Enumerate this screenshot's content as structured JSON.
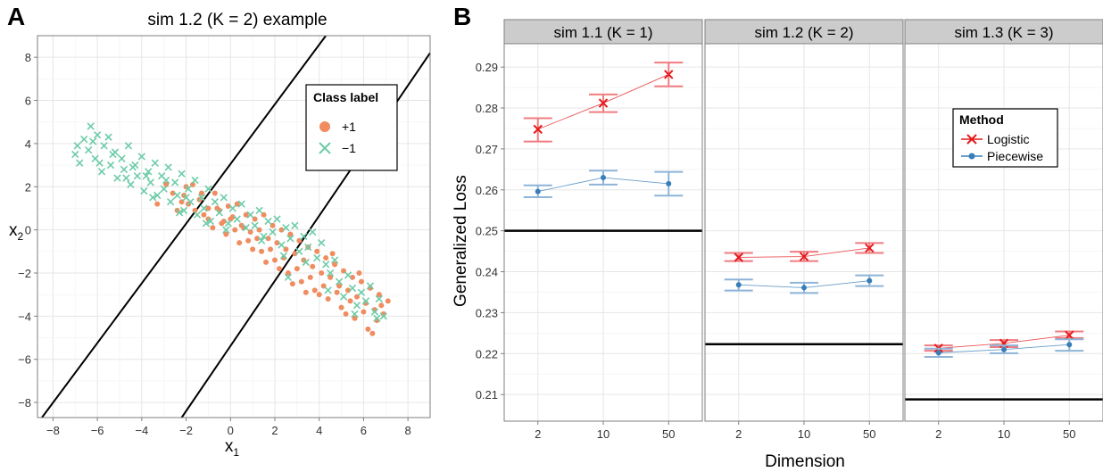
{
  "panel_a_letter": "A",
  "panel_b_letter": "B",
  "colors": {
    "plus_one": "#F08C60",
    "minus_one": "#6DCCA8",
    "logistic": "#E41A1C",
    "logistic_err": "#F07C80",
    "piecewise": "#377EB8",
    "piecewise_err": "#8EB4D8",
    "strip_bg": "#CCCCCC",
    "grid": "#EBEBEB"
  },
  "chart_data": [
    {
      "type": "scatter",
      "title": "sim 1.2 (K = 2) example",
      "xlabel": "x",
      "xlabel_sub": "1",
      "ylabel": "x",
      "ylabel_sub": "2",
      "xlim": [
        -8.7,
        9
      ],
      "ylim": [
        -8.7,
        9
      ],
      "xticks": [
        -8,
        -6,
        -4,
        -2,
        0,
        2,
        4,
        6,
        8
      ],
      "yticks": [
        -8,
        -6,
        -4,
        -2,
        0,
        2,
        4,
        6,
        8
      ],
      "xtick_labels": [
        "−8",
        "−6",
        "−4",
        "−2",
        "0",
        "2",
        "4",
        "6",
        "8"
      ],
      "ytick_labels": [
        "−8",
        "−6",
        "−4",
        "−2",
        "0",
        "2",
        "4",
        "6",
        "8"
      ],
      "grid": true,
      "legend": {
        "title": "Class label",
        "position": "top-right",
        "entries": [
          {
            "label": "+1",
            "marker": "circle",
            "color": "#F08C60"
          },
          {
            "label": "−1",
            "marker": "x",
            "color": "#6DCCA8"
          }
        ]
      },
      "boundary_lines": [
        {
          "x1": -8.5,
          "y1": -8.7,
          "x2": 4.3,
          "y2": 9.0
        },
        {
          "x1": -2.2,
          "y1": -8.7,
          "x2": 9.0,
          "y2": 8.2
        }
      ],
      "series": [
        {
          "name": "+1",
          "marker": "circle",
          "points": [
            [
              -3.3,
              1.2
            ],
            [
              -2.9,
              2.1
            ],
            [
              -2.6,
              1.7
            ],
            [
              -2.4,
              0.9
            ],
            [
              -2.1,
              1.6
            ],
            [
              -1.9,
              1.2
            ],
            [
              -1.7,
              2.1
            ],
            [
              -1.4,
              1.4
            ],
            [
              -1.2,
              0.7
            ],
            [
              -1.0,
              1.0
            ],
            [
              -0.7,
              1.7
            ],
            [
              -0.5,
              0.9
            ],
            [
              -0.3,
              0.4
            ],
            [
              -0.1,
              1.1
            ],
            [
              0.1,
              0.6
            ],
            [
              0.3,
              1.2
            ],
            [
              0.5,
              0.2
            ],
            [
              0.7,
              0.7
            ],
            [
              0.9,
              -0.1
            ],
            [
              1.1,
              0.5
            ],
            [
              1.3,
              0.0
            ],
            [
              1.5,
              0.7
            ],
            [
              1.7,
              -0.4
            ],
            [
              1.9,
              0.2
            ],
            [
              2.1,
              -0.6
            ],
            [
              2.3,
              0.0
            ],
            [
              2.5,
              -0.9
            ],
            [
              2.7,
              -0.2
            ],
            [
              2.9,
              -1.1
            ],
            [
              3.1,
              -0.5
            ],
            [
              3.3,
              -1.4
            ],
            [
              3.5,
              -0.8
            ],
            [
              3.7,
              -1.7
            ],
            [
              3.9,
              -1.0
            ],
            [
              4.1,
              -2.0
            ],
            [
              4.3,
              -1.3
            ],
            [
              4.5,
              -2.2
            ],
            [
              4.7,
              -1.6
            ],
            [
              4.9,
              -2.6
            ],
            [
              5.1,
              -1.9
            ],
            [
              5.3,
              -2.8
            ],
            [
              5.5,
              -2.2
            ],
            [
              5.7,
              -3.1
            ],
            [
              5.9,
              -2.4
            ],
            [
              6.1,
              -3.4
            ],
            [
              6.3,
              -2.7
            ],
            [
              6.5,
              -3.7
            ],
            [
              6.7,
              -3.0
            ],
            [
              6.9,
              -3.9
            ],
            [
              7.1,
              -3.3
            ],
            [
              6.2,
              -4.6
            ],
            [
              5.6,
              -4.1
            ],
            [
              5.0,
              -3.6
            ],
            [
              4.4,
              -3.2
            ],
            [
              3.8,
              -2.8
            ],
            [
              3.2,
              -2.4
            ],
            [
              2.6,
              -2.0
            ],
            [
              2.0,
              -1.4
            ],
            [
              1.4,
              -1.0
            ],
            [
              0.8,
              -0.5
            ],
            [
              0.2,
              0.0
            ],
            [
              -0.4,
              0.3
            ],
            [
              -1.0,
              0.5
            ],
            [
              -1.6,
              0.9
            ],
            [
              -2.2,
              1.3
            ],
            [
              3.0,
              -1.8
            ],
            [
              3.6,
              -2.2
            ],
            [
              4.2,
              -2.6
            ],
            [
              4.8,
              -2.9
            ],
            [
              5.4,
              -3.3
            ],
            [
              6.0,
              -3.8
            ],
            [
              6.6,
              -4.2
            ],
            [
              2.4,
              -1.3
            ],
            [
              1.8,
              -0.9
            ],
            [
              1.2,
              -0.4
            ],
            [
              0.6,
              0.1
            ],
            [
              0.0,
              0.5
            ],
            [
              -0.6,
              1.0
            ],
            [
              -1.3,
              1.7
            ],
            [
              -2.0,
              2.0
            ],
            [
              4.0,
              -3.0
            ],
            [
              5.2,
              -3.9
            ],
            [
              6.4,
              -4.8
            ],
            [
              3.4,
              -2.9
            ],
            [
              2.8,
              -2.5
            ],
            [
              2.2,
              -1.8
            ],
            [
              1.6,
              -1.5
            ],
            [
              1.0,
              -0.9
            ],
            [
              0.4,
              -0.6
            ],
            [
              -0.2,
              -0.2
            ],
            [
              -0.8,
              0.1
            ],
            [
              5.8,
              -2.0
            ],
            [
              6.8,
              -3.5
            ],
            [
              4.6,
              -1.1
            ]
          ]
        },
        {
          "name": "−1",
          "marker": "x",
          "points": [
            [
              -7.0,
              3.5
            ],
            [
              -6.8,
              3.1
            ],
            [
              -6.6,
              4.2
            ],
            [
              -6.4,
              3.7
            ],
            [
              -6.3,
              4.8
            ],
            [
              -6.1,
              3.3
            ],
            [
              -6.0,
              4.4
            ],
            [
              -5.8,
              2.7
            ],
            [
              -5.7,
              3.9
            ],
            [
              -5.5,
              4.3
            ],
            [
              -5.4,
              3.0
            ],
            [
              -5.2,
              3.6
            ],
            [
              -5.1,
              2.4
            ],
            [
              -4.9,
              3.3
            ],
            [
              -4.8,
              2.8
            ],
            [
              -4.6,
              3.9
            ],
            [
              -4.5,
              2.1
            ],
            [
              -4.3,
              3.0
            ],
            [
              -4.2,
              2.5
            ],
            [
              -4.0,
              3.4
            ],
            [
              -3.9,
              1.8
            ],
            [
              -3.7,
              2.7
            ],
            [
              -3.6,
              2.2
            ],
            [
              -3.4,
              3.1
            ],
            [
              -3.3,
              1.6
            ],
            [
              -3.1,
              2.5
            ],
            [
              -3.0,
              1.9
            ],
            [
              -2.8,
              2.9
            ],
            [
              -2.7,
              1.3
            ],
            [
              -2.5,
              2.2
            ],
            [
              -2.4,
              1.6
            ],
            [
              -2.2,
              2.6
            ],
            [
              -2.1,
              0.9
            ],
            [
              -1.9,
              1.9
            ],
            [
              -1.8,
              1.3
            ],
            [
              -1.6,
              2.3
            ],
            [
              -1.5,
              0.7
            ],
            [
              -1.3,
              1.5
            ],
            [
              -1.2,
              1.0
            ],
            [
              -1.0,
              1.9
            ],
            [
              -0.9,
              0.4
            ],
            [
              -0.7,
              1.3
            ],
            [
              -0.5,
              0.8
            ],
            [
              -0.3,
              1.5
            ],
            [
              -0.1,
              0.3
            ],
            [
              0.1,
              1.0
            ],
            [
              0.3,
              0.5
            ],
            [
              0.5,
              1.2
            ],
            [
              0.7,
              0.1
            ],
            [
              0.9,
              0.7
            ],
            [
              1.1,
              0.2
            ],
            [
              1.3,
              0.9
            ],
            [
              1.5,
              -0.3
            ],
            [
              1.7,
              0.4
            ],
            [
              1.9,
              -0.1
            ],
            [
              2.1,
              0.5
            ],
            [
              2.3,
              -0.7
            ],
            [
              2.5,
              0.1
            ],
            [
              2.7,
              -0.4
            ],
            [
              2.9,
              0.2
            ],
            [
              3.1,
              -1.0
            ],
            [
              3.3,
              -0.3
            ],
            [
              3.5,
              -0.8
            ],
            [
              3.7,
              -0.1
            ],
            [
              3.9,
              -1.3
            ],
            [
              4.1,
              -0.6
            ],
            [
              4.3,
              -1.6
            ],
            [
              4.5,
              -2.0
            ],
            [
              4.7,
              -1.4
            ],
            [
              4.9,
              -2.4
            ],
            [
              5.1,
              -3.1
            ],
            [
              5.3,
              -2.1
            ],
            [
              5.5,
              -2.7
            ],
            [
              5.7,
              -3.5
            ],
            [
              5.9,
              -2.9
            ],
            [
              6.1,
              -3.3
            ],
            [
              6.3,
              -2.6
            ],
            [
              6.5,
              -3.8
            ],
            [
              6.7,
              -3.2
            ],
            [
              6.9,
              -4.0
            ],
            [
              -6.9,
              3.9
            ],
            [
              -5.9,
              3.1
            ],
            [
              -4.7,
              2.4
            ],
            [
              -3.5,
              1.5
            ],
            [
              -2.3,
              0.8
            ],
            [
              -1.1,
              0.3
            ],
            [
              -0.2,
              0.0
            ],
            [
              1.4,
              -0.5
            ],
            [
              2.4,
              -1.2
            ],
            [
              3.4,
              -1.5
            ],
            [
              2.6,
              -2.2
            ],
            [
              4.4,
              -2.8
            ],
            [
              5.6,
              -3.9
            ],
            [
              6.6,
              -4.1
            ],
            [
              -6.2,
              4.1
            ],
            [
              -5.3,
              3.5
            ],
            [
              -4.4,
              2.9
            ],
            [
              -3.8,
              2.5
            ],
            [
              -2.9,
              2.3
            ],
            [
              -2.0,
              1.5
            ]
          ]
        }
      ]
    },
    {
      "type": "line",
      "facets": [
        "sim 1.1 (K = 1)",
        "sim 1.2 (K = 2)",
        "sim 1.3 (K = 3)"
      ],
      "categories": [
        "2",
        "10",
        "50"
      ],
      "xlabel": "Dimension",
      "ylabel": "Generalized Loss",
      "ylim": [
        0.2035,
        0.2957
      ],
      "yticks": [
        0.21,
        0.22,
        0.23,
        0.24,
        0.25,
        0.26,
        0.27,
        0.28,
        0.29
      ],
      "ytick_labels": [
        "0.21",
        "0.22",
        "0.23",
        "0.24",
        "0.25",
        "0.26",
        "0.27",
        "0.28",
        "0.29"
      ],
      "grid": true,
      "legend": {
        "title": "Method",
        "position": "top-right",
        "entries": [
          {
            "label": "Logistic",
            "marker": "x",
            "color": "#E41A1C"
          },
          {
            "label": "Piecewise",
            "marker": "circle",
            "color": "#377EB8"
          }
        ]
      },
      "reference_lines": [
        0.25,
        0.2223,
        0.2088
      ],
      "series": [
        {
          "name": "Logistic",
          "values": [
            [
              0.2748,
              0.2812,
              0.2882
            ],
            [
              0.2435,
              0.2437,
              0.2458
            ],
            [
              0.2213,
              0.2225,
              0.2245
            ]
          ],
          "lower": [
            [
              0.2718,
              0.279,
              0.2853
            ],
            [
              0.2426,
              0.2426,
              0.2446
            ],
            [
              0.2207,
              0.2216,
              0.2238
            ]
          ],
          "upper": [
            [
              0.2775,
              0.2833,
              0.2911
            ],
            [
              0.2446,
              0.2449,
              0.247
            ],
            [
              0.222,
              0.2233,
              0.2254
            ]
          ]
        },
        {
          "name": "Piecewise",
          "values": [
            [
              0.2596,
              0.263,
              0.2615
            ],
            [
              0.2368,
              0.2361,
              0.2378
            ],
            [
              0.2202,
              0.221,
              0.2222
            ]
          ],
          "lower": [
            [
              0.2582,
              0.2613,
              0.2586
            ],
            [
              0.2354,
              0.2348,
              0.2365
            ],
            [
              0.2192,
              0.2201,
              0.2207
            ]
          ],
          "upper": [
            [
              0.2611,
              0.2647,
              0.2644
            ],
            [
              0.2381,
              0.2373,
              0.2391
            ],
            [
              0.2212,
              0.222,
              0.2235
            ]
          ]
        }
      ]
    }
  ]
}
